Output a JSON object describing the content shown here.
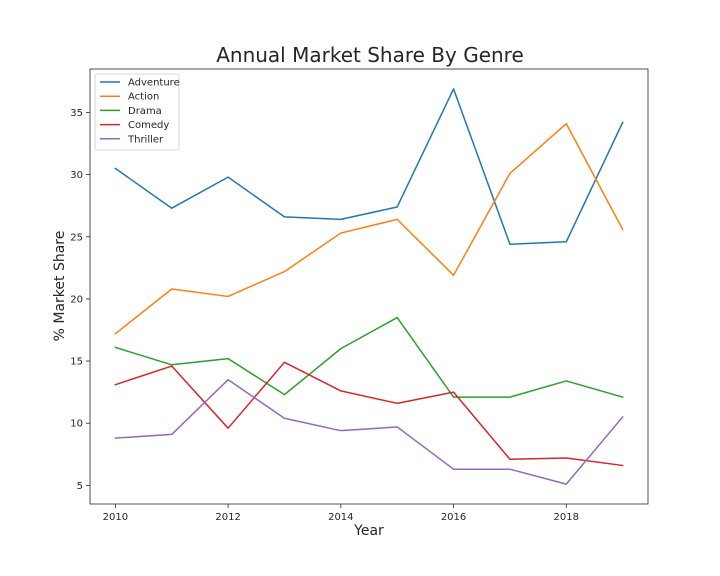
{
  "chart_data": {
    "type": "line",
    "title": "Annual Market Share By Genre",
    "xlabel": "Year",
    "ylabel": "% Market Share",
    "x": [
      2010,
      2011,
      2012,
      2013,
      2014,
      2015,
      2016,
      2017,
      2018,
      2019
    ],
    "xlim": [
      2009.55,
      2019.45
    ],
    "ylim": [
      3.5,
      38.5
    ],
    "xticks": [
      2010,
      2012,
      2014,
      2016,
      2018
    ],
    "yticks": [
      5,
      10,
      15,
      20,
      25,
      30,
      35
    ],
    "grid": false,
    "legend_position": "top-left",
    "series": [
      {
        "name": "Adventure",
        "color": "#1f77b4",
        "values": [
          30.5,
          27.3,
          29.8,
          26.6,
          26.4,
          27.4,
          36.9,
          24.4,
          24.6,
          34.2
        ]
      },
      {
        "name": "Action",
        "color": "#ff7f0e",
        "values": [
          17.2,
          20.8,
          20.2,
          22.2,
          25.3,
          26.4,
          21.9,
          30.1,
          34.1,
          25.6
        ]
      },
      {
        "name": "Drama",
        "color": "#2ca02c",
        "values": [
          16.1,
          14.7,
          15.2,
          12.3,
          16.0,
          18.5,
          12.1,
          12.1,
          13.4,
          12.1
        ]
      },
      {
        "name": "Comedy",
        "color": "#d62728",
        "values": [
          13.1,
          14.6,
          9.6,
          14.9,
          12.6,
          11.6,
          12.5,
          7.1,
          7.2,
          6.6
        ]
      },
      {
        "name": "Thriller",
        "color": "#9467bd",
        "values": [
          8.8,
          9.1,
          13.5,
          10.4,
          9.4,
          9.7,
          6.3,
          6.3,
          5.1,
          10.5
        ]
      }
    ]
  }
}
